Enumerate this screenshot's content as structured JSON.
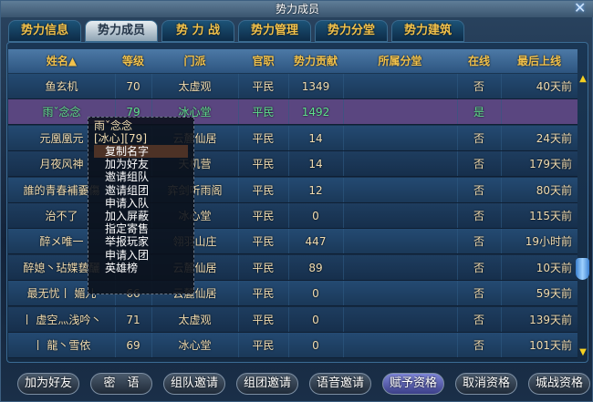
{
  "window": {
    "title": "势力成员",
    "close_icon": "close-icon"
  },
  "tabs": [
    {
      "label": "势力信息"
    },
    {
      "label": "势力成员",
      "active": true
    },
    {
      "label": "势 力 战"
    },
    {
      "label": "势力管理"
    },
    {
      "label": "势力分堂"
    },
    {
      "label": "势力建筑"
    }
  ],
  "columns": [
    "姓名▲",
    "等级",
    "门派",
    "官职",
    "势力贡献",
    "所属分堂",
    "在线",
    "最后上线"
  ],
  "members": [
    {
      "name": "鱼玄机",
      "level": "70",
      "sect": "太虚观",
      "rank": "平民",
      "contrib": "1349",
      "branch": "",
      "online": "否",
      "last": "40天前"
    },
    {
      "name": "雨ˇ念念",
      "level": "79",
      "sect": "冰心堂",
      "rank": "平民",
      "contrib": "1492",
      "branch": "",
      "online": "是",
      "last": ""
    },
    {
      "name": "元凰凰元",
      "level": "",
      "sect": "云麓仙居",
      "rank": "平民",
      "contrib": "14",
      "branch": "",
      "online": "否",
      "last": "24天前"
    },
    {
      "name": "月夜风神",
      "level": "",
      "sect": "天机营",
      "rank": "平民",
      "contrib": "14",
      "branch": "",
      "online": "否",
      "last": "179天前"
    },
    {
      "name": "誰的青春補嫑傷",
      "level": "",
      "sect": "弈剑听雨阁",
      "rank": "平民",
      "contrib": "12",
      "branch": "",
      "online": "否",
      "last": "80天前"
    },
    {
      "name": "治不了",
      "level": "",
      "sect": "冰心堂",
      "rank": "平民",
      "contrib": "0",
      "branch": "",
      "online": "否",
      "last": "115天前"
    },
    {
      "name": "醉メ唯一",
      "level": "",
      "sect": "翎羽山庄",
      "rank": "平民",
      "contrib": "447",
      "branch": "",
      "online": "否",
      "last": "19小时前"
    },
    {
      "name": "醉媳丶玷媟兿釃",
      "level": "",
      "sect": "云麓仙居",
      "rank": "平民",
      "contrib": "89",
      "branch": "",
      "online": "否",
      "last": "10天前"
    },
    {
      "name": "最无忧丨 媚儿",
      "level": "66",
      "sect": "云麓仙居",
      "rank": "平民",
      "contrib": "0",
      "branch": "",
      "online": "否",
      "last": "59天前"
    },
    {
      "name": "丨 虚空灬浅吟丶",
      "level": "71",
      "sect": "太虚观",
      "rank": "平民",
      "contrib": "0",
      "branch": "",
      "online": "否",
      "last": "139天前"
    },
    {
      "name": "丨 龍丶雪依",
      "level": "69",
      "sect": "冰心堂",
      "rank": "平民",
      "contrib": "0",
      "branch": "",
      "online": "否",
      "last": "101天前"
    }
  ],
  "context_menu": {
    "name": "雨ˇ念念",
    "info": "[冰心][79]",
    "items": [
      "复制名字",
      "加为好友",
      "邀请组队",
      "邀请组团",
      "申请入队",
      "加入屏蔽",
      "指定寄售",
      "举报玩家",
      "申请入团",
      "英雄榜"
    ]
  },
  "buttons": [
    "加为好友",
    "密　语",
    "组队邀请",
    "组团邀请",
    "语音邀请",
    "赋予资格",
    "取消资格",
    "城战资格"
  ],
  "scrollbar": {
    "up_icon": "▲",
    "down_icon": "▼",
    "position": 0.7
  },
  "colors": {
    "header_text": "#f2c24c",
    "online_text": "#5fe08e",
    "selected_row": "#5a4680"
  }
}
